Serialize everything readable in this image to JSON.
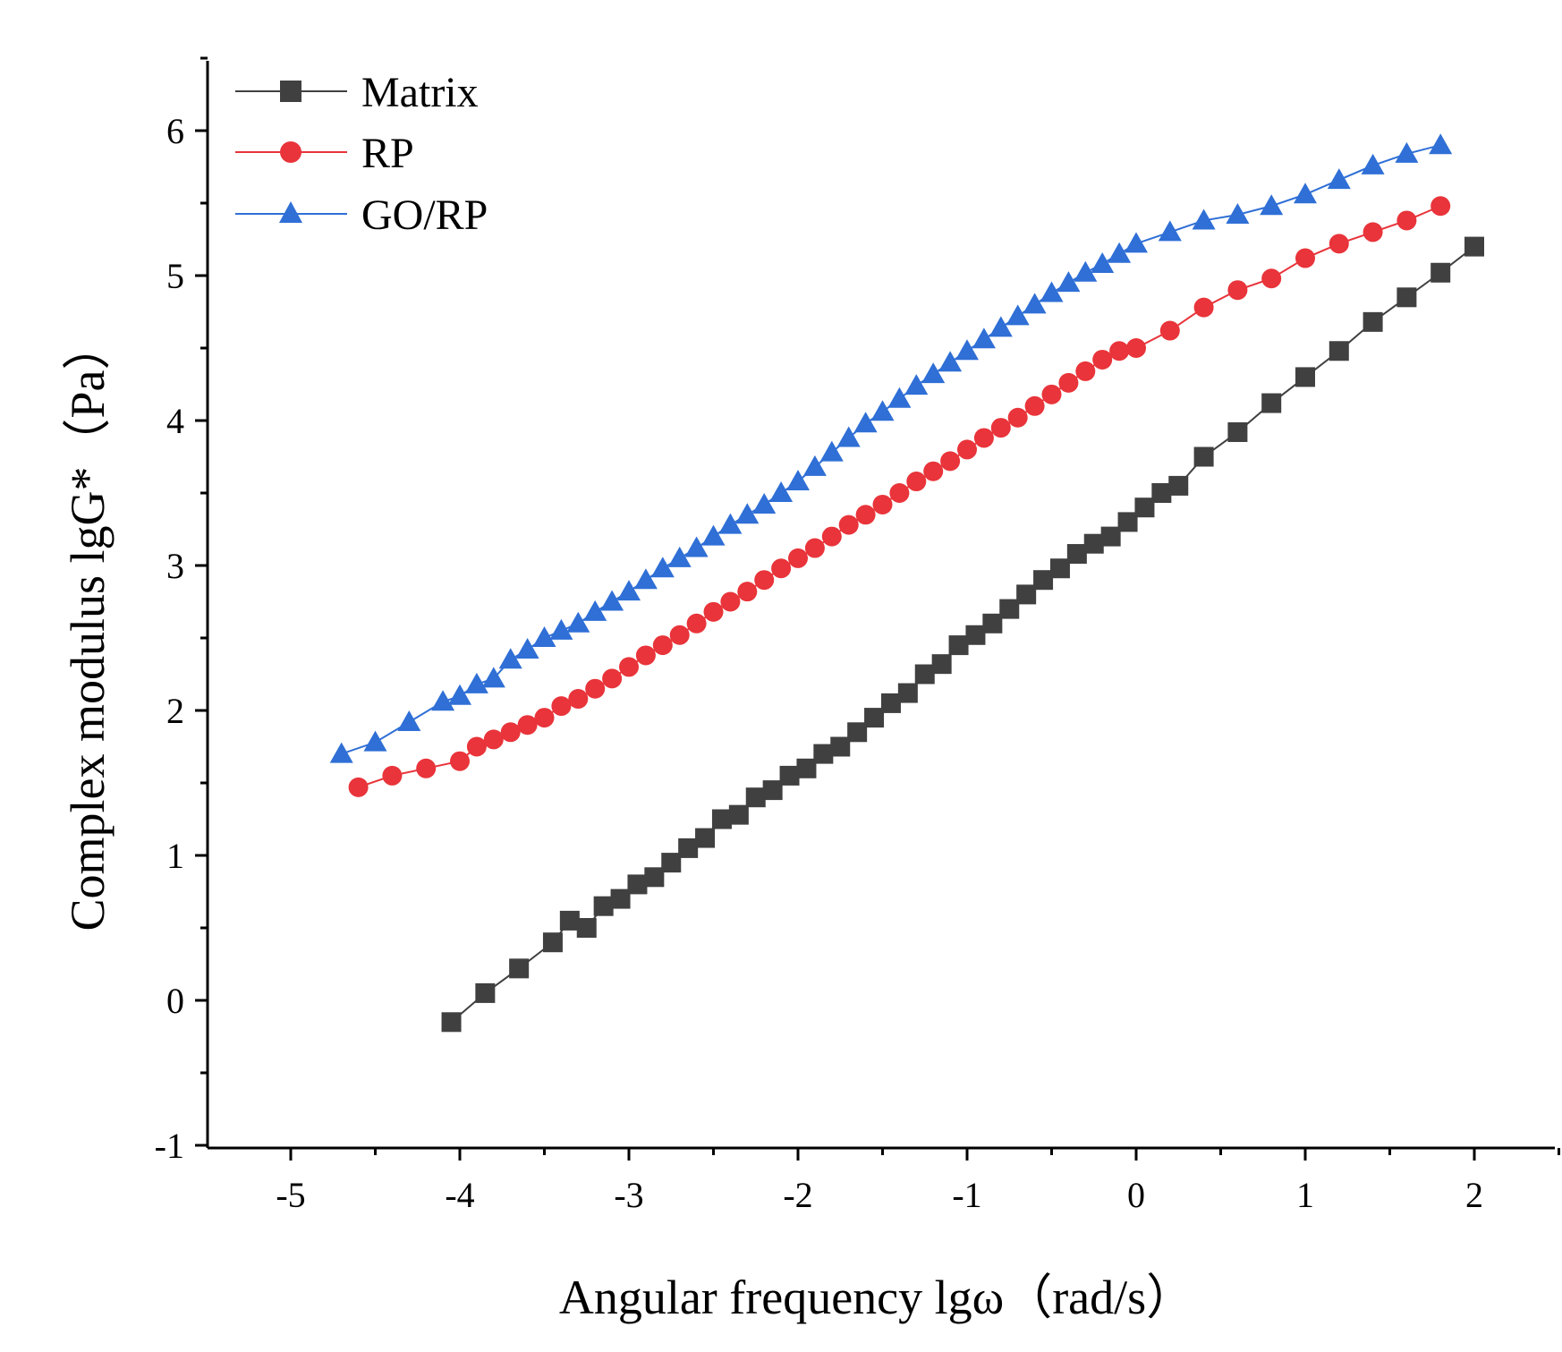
{
  "chart_data": {
    "type": "line",
    "title": "",
    "xlabel": "Angular frequency lgω（rad/s）",
    "ylabel": "Complex modulus lgG*（Pa）",
    "xlim": [
      -5.5,
      2.5
    ],
    "ylim": [
      -1,
      6.5
    ],
    "xticks": [
      -5,
      -4,
      -3,
      -2,
      -1,
      0,
      1,
      2
    ],
    "yticks": [
      -1,
      0,
      1,
      2,
      3,
      4,
      5,
      6
    ],
    "xtick_labels": [
      "-5",
      "-4",
      "-3",
      "-2",
      "-1",
      "0",
      "1",
      "2"
    ],
    "ytick_labels": [
      "-1",
      "0",
      "1",
      "2",
      "3",
      "4",
      "5",
      "6"
    ],
    "grid": false,
    "legend_position": "top-left",
    "series": [
      {
        "name": "Matrix",
        "color": "#404040",
        "marker": "square",
        "x": [
          -4.05,
          -3.85,
          -3.65,
          -3.45,
          -3.35,
          -3.25,
          -3.15,
          -3.05,
          -2.95,
          -2.85,
          -2.75,
          -2.65,
          -2.55,
          -2.45,
          -2.35,
          -2.25,
          -2.15,
          -2.05,
          -1.95,
          -1.85,
          -1.75,
          -1.65,
          -1.55,
          -1.45,
          -1.35,
          -1.25,
          -1.15,
          -1.05,
          -0.95,
          -0.85,
          -0.75,
          -0.65,
          -0.55,
          -0.45,
          -0.35,
          -0.25,
          -0.15,
          -0.05,
          0.05,
          0.15,
          0.25,
          0.4,
          0.6,
          0.8,
          1.0,
          1.2,
          1.4,
          1.6,
          1.8,
          2.0
        ],
        "y": [
          -0.15,
          0.05,
          0.22,
          0.4,
          0.55,
          0.5,
          0.65,
          0.7,
          0.8,
          0.85,
          0.95,
          1.05,
          1.12,
          1.25,
          1.28,
          1.4,
          1.45,
          1.55,
          1.6,
          1.7,
          1.75,
          1.85,
          1.95,
          2.05,
          2.12,
          2.25,
          2.32,
          2.45,
          2.52,
          2.6,
          2.7,
          2.8,
          2.9,
          2.98,
          3.08,
          3.15,
          3.2,
          3.3,
          3.4,
          3.5,
          3.55,
          3.75,
          3.92,
          4.12,
          4.3,
          4.48,
          4.68,
          4.85,
          5.02,
          5.2
        ]
      },
      {
        "name": "RP",
        "color": "#e8343a",
        "marker": "circle",
        "x": [
          -4.6,
          -4.4,
          -4.2,
          -4.0,
          -3.9,
          -3.8,
          -3.7,
          -3.6,
          -3.5,
          -3.4,
          -3.3,
          -3.2,
          -3.1,
          -3.0,
          -2.9,
          -2.8,
          -2.7,
          -2.6,
          -2.5,
          -2.4,
          -2.3,
          -2.2,
          -2.1,
          -2.0,
          -1.9,
          -1.8,
          -1.7,
          -1.6,
          -1.5,
          -1.4,
          -1.3,
          -1.2,
          -1.1,
          -1.0,
          -0.9,
          -0.8,
          -0.7,
          -0.6,
          -0.5,
          -0.4,
          -0.3,
          -0.2,
          -0.1,
          0.0,
          0.2,
          0.4,
          0.6,
          0.8,
          1.0,
          1.2,
          1.4,
          1.6,
          1.8
        ],
        "y": [
          1.47,
          1.55,
          1.6,
          1.65,
          1.75,
          1.8,
          1.85,
          1.9,
          1.95,
          2.03,
          2.08,
          2.15,
          2.22,
          2.3,
          2.38,
          2.45,
          2.52,
          2.6,
          2.68,
          2.75,
          2.82,
          2.9,
          2.98,
          3.05,
          3.12,
          3.2,
          3.28,
          3.35,
          3.42,
          3.5,
          3.58,
          3.65,
          3.72,
          3.8,
          3.88,
          3.95,
          4.02,
          4.1,
          4.18,
          4.26,
          4.34,
          4.42,
          4.48,
          4.5,
          4.62,
          4.78,
          4.9,
          4.98,
          5.12,
          5.22,
          5.3,
          5.38,
          5.48
        ]
      },
      {
        "name": "GO/RP",
        "color": "#2f6fd6",
        "marker": "triangle",
        "x": [
          -4.7,
          -4.5,
          -4.3,
          -4.1,
          -4.0,
          -3.9,
          -3.8,
          -3.7,
          -3.6,
          -3.5,
          -3.4,
          -3.3,
          -3.2,
          -3.1,
          -3.0,
          -2.9,
          -2.8,
          -2.7,
          -2.6,
          -2.5,
          -2.4,
          -2.3,
          -2.2,
          -2.1,
          -2.0,
          -1.9,
          -1.8,
          -1.7,
          -1.6,
          -1.5,
          -1.4,
          -1.3,
          -1.2,
          -1.1,
          -1.0,
          -0.9,
          -0.8,
          -0.7,
          -0.6,
          -0.5,
          -0.4,
          -0.3,
          -0.2,
          -0.1,
          0.0,
          0.2,
          0.4,
          0.6,
          0.8,
          1.0,
          1.2,
          1.4,
          1.6,
          1.8
        ],
        "y": [
          1.7,
          1.78,
          1.92,
          2.06,
          2.1,
          2.18,
          2.22,
          2.35,
          2.42,
          2.5,
          2.55,
          2.6,
          2.68,
          2.75,
          2.82,
          2.9,
          2.98,
          3.05,
          3.12,
          3.2,
          3.28,
          3.35,
          3.42,
          3.5,
          3.58,
          3.68,
          3.78,
          3.88,
          3.98,
          4.06,
          4.15,
          4.24,
          4.32,
          4.4,
          4.48,
          4.56,
          4.64,
          4.72,
          4.8,
          4.88,
          4.95,
          5.02,
          5.08,
          5.15,
          5.22,
          5.3,
          5.38,
          5.42,
          5.48,
          5.56,
          5.66,
          5.76,
          5.84,
          5.9
        ]
      }
    ]
  }
}
